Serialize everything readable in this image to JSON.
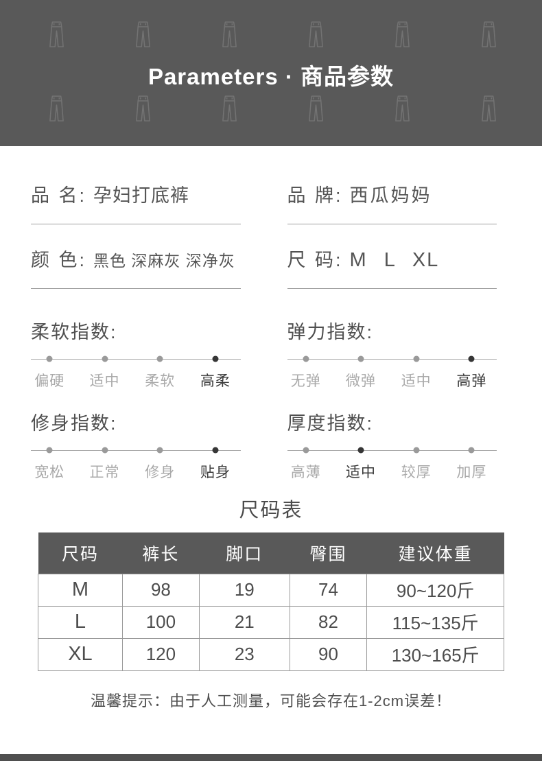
{
  "header": {
    "title": "Parameters · 商品参数"
  },
  "fields": [
    {
      "label": "品 名:",
      "value": "孕妇打底裤"
    },
    {
      "label": "品 牌:",
      "value": "西瓜妈妈"
    },
    {
      "label": "颜 色:",
      "value": "黑色 深麻灰 深净灰"
    },
    {
      "label": "尺 码:",
      "value": "M L XL"
    }
  ],
  "indexes": [
    {
      "title": "柔软指数:",
      "options": [
        "偏硬",
        "适中",
        "柔软",
        "高柔"
      ],
      "active": 3
    },
    {
      "title": "弹力指数:",
      "options": [
        "无弹",
        "微弹",
        "适中",
        "高弹"
      ],
      "active": 3
    },
    {
      "title": "修身指数:",
      "options": [
        "宽松",
        "正常",
        "修身",
        "贴身"
      ],
      "active": 3
    },
    {
      "title": "厚度指数:",
      "options": [
        "高薄",
        "适中",
        "较厚",
        "加厚"
      ],
      "active": 1
    }
  ],
  "size_table": {
    "title": "尺码表",
    "headers": [
      "尺码",
      "裤长",
      "脚口",
      "臀围",
      "建议体重"
    ],
    "rows": [
      [
        "M",
        "98",
        "19",
        "74",
        "90~120斤"
      ],
      [
        "L",
        "100",
        "21",
        "82",
        "115~135斤"
      ],
      [
        "XL",
        "120",
        "23",
        "90",
        "130~165斤"
      ]
    ]
  },
  "tip": "温馨提示：由于人工测量，可能会存在1-2cm误差！",
  "colors": {
    "header_bg": "#595959",
    "active_dot": "#363636",
    "inactive_text": "#a9a9a9",
    "table_border": "#999999",
    "footer_bar": "#4f4f4f"
  }
}
